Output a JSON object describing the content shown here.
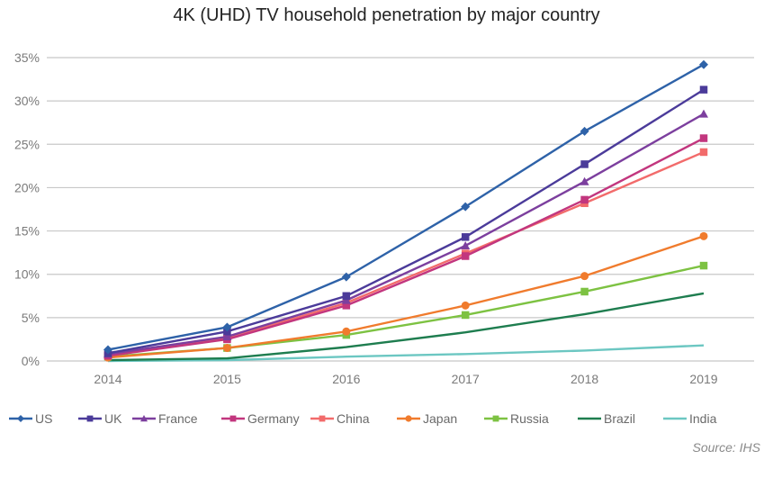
{
  "chart_data": {
    "type": "line",
    "title": "4K (UHD) TV household penetration by major country",
    "xlabel": "",
    "ylabel": "",
    "x": [
      "2014",
      "2015",
      "2016",
      "2017",
      "2018",
      "2019"
    ],
    "ylim": [
      0,
      35
    ],
    "yticks": [
      0,
      5,
      10,
      15,
      20,
      25,
      30,
      35
    ],
    "ytick_labels": [
      "0%",
      "5%",
      "10%",
      "15%",
      "20%",
      "25%",
      "30%",
      "35%"
    ],
    "grid": true,
    "legend_position": "bottom",
    "series": [
      {
        "name": "US",
        "color": "#2e62a8",
        "marker": "diamond",
        "values": [
          1.3,
          3.9,
          9.7,
          17.8,
          26.5,
          34.2
        ]
      },
      {
        "name": "UK",
        "color": "#4b3b9a",
        "marker": "square",
        "values": [
          0.9,
          3.4,
          7.5,
          14.3,
          22.7,
          31.3
        ]
      },
      {
        "name": "France",
        "color": "#7c3f9e",
        "marker": "triangle",
        "values": [
          0.8,
          2.8,
          7.0,
          13.3,
          20.7,
          28.5
        ]
      },
      {
        "name": "Germany",
        "color": "#c2367e",
        "marker": "square",
        "values": [
          0.6,
          2.5,
          6.4,
          12.1,
          18.6,
          25.7
        ]
      },
      {
        "name": "China",
        "color": "#f26b6b",
        "marker": "square",
        "values": [
          0.7,
          2.6,
          6.7,
          12.4,
          18.2,
          24.1
        ]
      },
      {
        "name": "Japan",
        "color": "#f07b2d",
        "marker": "circle",
        "values": [
          0.4,
          1.5,
          3.4,
          6.4,
          9.8,
          14.4
        ]
      },
      {
        "name": "Russia",
        "color": "#7dc242",
        "marker": "square",
        "values": [
          0.5,
          1.5,
          3.0,
          5.3,
          8.0,
          11.0
        ]
      },
      {
        "name": "Brazil",
        "color": "#1e7d4f",
        "marker": "none",
        "values": [
          0.1,
          0.3,
          1.6,
          3.3,
          5.4,
          7.8
        ]
      },
      {
        "name": "India",
        "color": "#6cc7c2",
        "marker": "none",
        "values": [
          0.0,
          0.1,
          0.5,
          0.8,
          1.2,
          1.8
        ]
      }
    ]
  },
  "source": "Source:  IHS"
}
